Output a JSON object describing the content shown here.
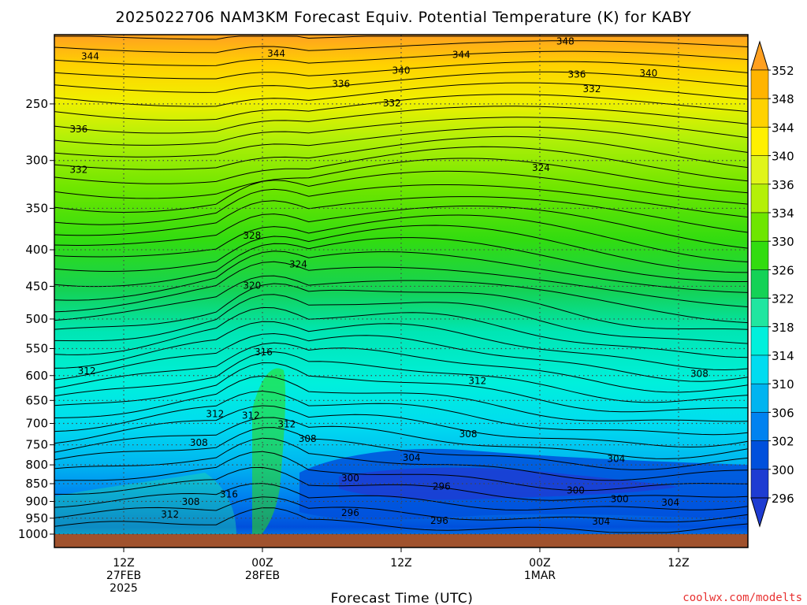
{
  "title": "2025022706 NAM3KM Forecast Equiv. Potential Temperature (K) for KABY",
  "credit": "coolwx.com/modelts",
  "colors": {
    "ground": "#a0522d",
    "background": "#ffffff",
    "grid": "#555555",
    "credit": "#e83030"
  },
  "chart_data": {
    "type": "heatmap",
    "title": "2025022706 NAM3KM Forecast Equiv. Potential Temperature (K) for KABY",
    "variable": "Equivalent Potential Temperature (K)",
    "station": "KABY",
    "model": "NAM3KM",
    "init": "2025022706",
    "xlabel": "Forecast Time (UTC)",
    "ylabel": "",
    "x_ticks": [
      {
        "hour": 6,
        "lines": [
          "12Z",
          "27FEB",
          "2025"
        ]
      },
      {
        "hour": 18,
        "lines": [
          "00Z",
          "28FEB"
        ]
      },
      {
        "hour": 30,
        "lines": [
          "12Z"
        ]
      },
      {
        "hour": 42,
        "lines": [
          "00Z",
          "1MAR"
        ]
      },
      {
        "hour": 54,
        "lines": [
          "12Z"
        ]
      }
    ],
    "xlim_hours": [
      0,
      60
    ],
    "y_ticks": [
      250,
      300,
      350,
      400,
      450,
      500,
      550,
      600,
      650,
      700,
      750,
      800,
      850,
      900,
      950,
      1000
    ],
    "ylim_hpa": [
      200,
      1000
    ],
    "y_scale": "log-pressure",
    "grid": true,
    "colorbar": {
      "labels": [
        352,
        348,
        344,
        340,
        336,
        334,
        330,
        326,
        322,
        318,
        314,
        310,
        306,
        302,
        300,
        296
      ],
      "colors": [
        "#ffa020",
        "#ffb400",
        "#ffd200",
        "#fff000",
        "#e0f51a",
        "#b4f008",
        "#6ee600",
        "#32dc10",
        "#14d256",
        "#20e6a0",
        "#00f0dc",
        "#00dcf0",
        "#00b4f0",
        "#0082f0",
        "#0050dc",
        "#1e3cd2"
      ],
      "extend": "both"
    },
    "contour_labels": [
      {
        "value": "348",
        "hour": 44.2,
        "p": 205
      },
      {
        "value": "344",
        "hour": 3.1,
        "p": 215
      },
      {
        "value": "344",
        "hour": 19.2,
        "p": 213
      },
      {
        "value": "344",
        "hour": 35.2,
        "p": 214
      },
      {
        "value": "340",
        "hour": 30,
        "p": 225
      },
      {
        "value": "340",
        "hour": 51.4,
        "p": 227
      },
      {
        "value": "336",
        "hour": 24.8,
        "p": 235
      },
      {
        "value": "336",
        "hour": 45.2,
        "p": 228
      },
      {
        "value": "332",
        "hour": 29.2,
        "p": 250
      },
      {
        "value": "332",
        "hour": 46.5,
        "p": 239
      },
      {
        "value": "336",
        "hour": 2.1,
        "p": 272
      },
      {
        "value": "332",
        "hour": 2.1,
        "p": 310
      },
      {
        "value": "324",
        "hour": 42.1,
        "p": 308
      },
      {
        "value": "328",
        "hour": 17.1,
        "p": 383
      },
      {
        "value": "324",
        "hour": 21.1,
        "p": 420
      },
      {
        "value": "320",
        "hour": 17.1,
        "p": 450
      },
      {
        "value": "316",
        "hour": 18.1,
        "p": 558
      },
      {
        "value": "312",
        "hour": 2.8,
        "p": 593
      },
      {
        "value": "312",
        "hour": 36.6,
        "p": 612
      },
      {
        "value": "308",
        "hour": 55.8,
        "p": 598
      },
      {
        "value": "312",
        "hour": 13.9,
        "p": 681
      },
      {
        "value": "312",
        "hour": 17,
        "p": 684
      },
      {
        "value": "312",
        "hour": 20.1,
        "p": 704
      },
      {
        "value": "308",
        "hour": 21.9,
        "p": 737
      },
      {
        "value": "308",
        "hour": 35.8,
        "p": 726
      },
      {
        "value": "308",
        "hour": 12.5,
        "p": 747
      },
      {
        "value": "304",
        "hour": 30.9,
        "p": 784
      },
      {
        "value": "304",
        "hour": 48.6,
        "p": 787
      },
      {
        "value": "300",
        "hour": 25.6,
        "p": 837
      },
      {
        "value": "296",
        "hour": 33.5,
        "p": 860
      },
      {
        "value": "300",
        "hour": 45.1,
        "p": 871
      },
      {
        "value": "316",
        "hour": 15.1,
        "p": 882
      },
      {
        "value": "300",
        "hour": 48.9,
        "p": 896
      },
      {
        "value": "308",
        "hour": 11.8,
        "p": 903
      },
      {
        "value": "304",
        "hour": 53.3,
        "p": 906
      },
      {
        "value": "296",
        "hour": 25.6,
        "p": 936
      },
      {
        "value": "312",
        "hour": 10,
        "p": 941
      },
      {
        "value": "296",
        "hour": 33.3,
        "p": 960
      },
      {
        "value": "304",
        "hour": 47.3,
        "p": 963
      }
    ],
    "xcoolwx": true
  }
}
